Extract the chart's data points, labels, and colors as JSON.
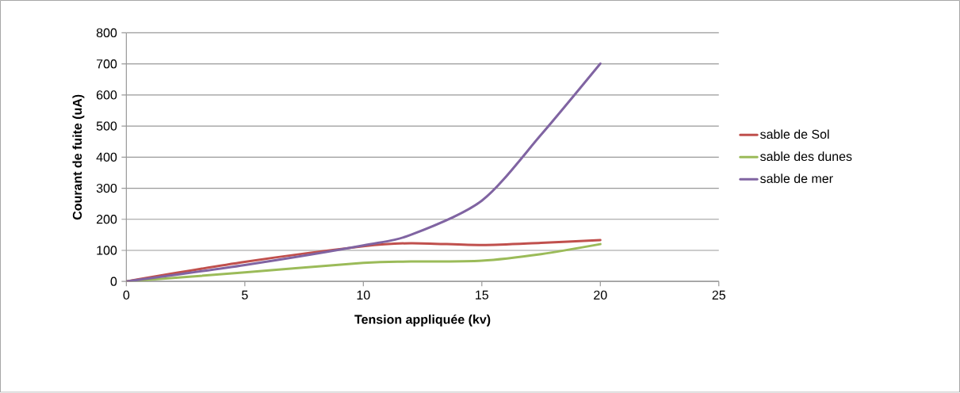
{
  "chart_data": {
    "type": "line",
    "xlabel": "Tension appliquée (kv)",
    "ylabel": "Courant de fuite (uA)",
    "xlim": [
      0,
      25
    ],
    "xticks": [
      0,
      5,
      10,
      15,
      20,
      25
    ],
    "ylim": [
      0,
      800
    ],
    "yticks": [
      0,
      100,
      200,
      300,
      400,
      500,
      600,
      700,
      800
    ],
    "grid": "y",
    "legend": "right",
    "marker": "none",
    "line_style": "solid",
    "x": [
      0,
      5,
      10,
      12,
      15,
      17.5,
      20
    ],
    "series": [
      {
        "name": "sable de Sol",
        "color": "#c0504d",
        "values": [
          0,
          63,
          113,
          123,
          117,
          124,
          133
        ]
      },
      {
        "name": "sable des dunes",
        "color": "#9bbb59",
        "values": [
          0,
          29,
          60,
          64,
          67,
          88,
          120
        ]
      },
      {
        "name": "sable de mer",
        "color": "#8064a2",
        "values": [
          0,
          53,
          116,
          150,
          260,
          472,
          701
        ]
      }
    ]
  }
}
